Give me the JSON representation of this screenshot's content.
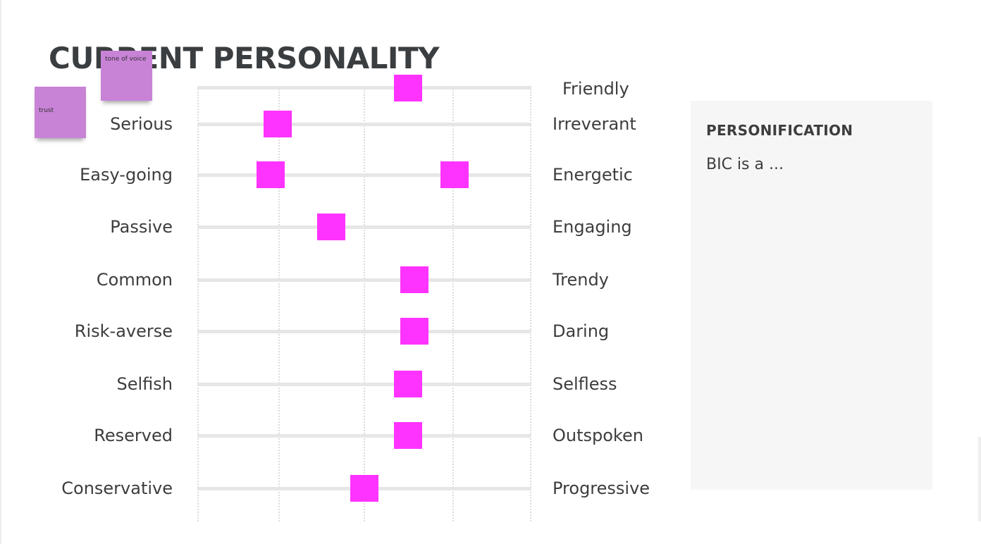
{
  "title": "CURRENT PERSONALITY",
  "sticky_notes": [
    {
      "text": "tone of voice",
      "color": "#c883d6"
    },
    {
      "text": "trust",
      "color": "#c883d6"
    }
  ],
  "scale": {
    "marker_color": "#ff33ff",
    "top_label": "Friendly",
    "top_position": 0.63,
    "rows": [
      {
        "left": "Serious",
        "right": "Irreverant",
        "positions": [
          0.24
        ]
      },
      {
        "left": "Easy-going",
        "right": "Energetic",
        "positions": [
          0.22,
          0.77
        ]
      },
      {
        "left": "Passive",
        "right": "Engaging",
        "positions": [
          0.4
        ]
      },
      {
        "left": "Common",
        "right": "Trendy",
        "positions": [
          0.65
        ]
      },
      {
        "left": "Risk-averse",
        "right": "Daring",
        "positions": [
          0.65
        ]
      },
      {
        "left": "Selfish",
        "right": "Selfless",
        "positions": [
          0.63
        ]
      },
      {
        "left": "Reserved",
        "right": "Outspoken",
        "positions": [
          0.63
        ]
      },
      {
        "left": "Conservative",
        "right": "Progressive",
        "positions": [
          0.5
        ]
      }
    ]
  },
  "panel": {
    "heading": "PERSONIFICATION",
    "text": "BIC is a ..."
  }
}
